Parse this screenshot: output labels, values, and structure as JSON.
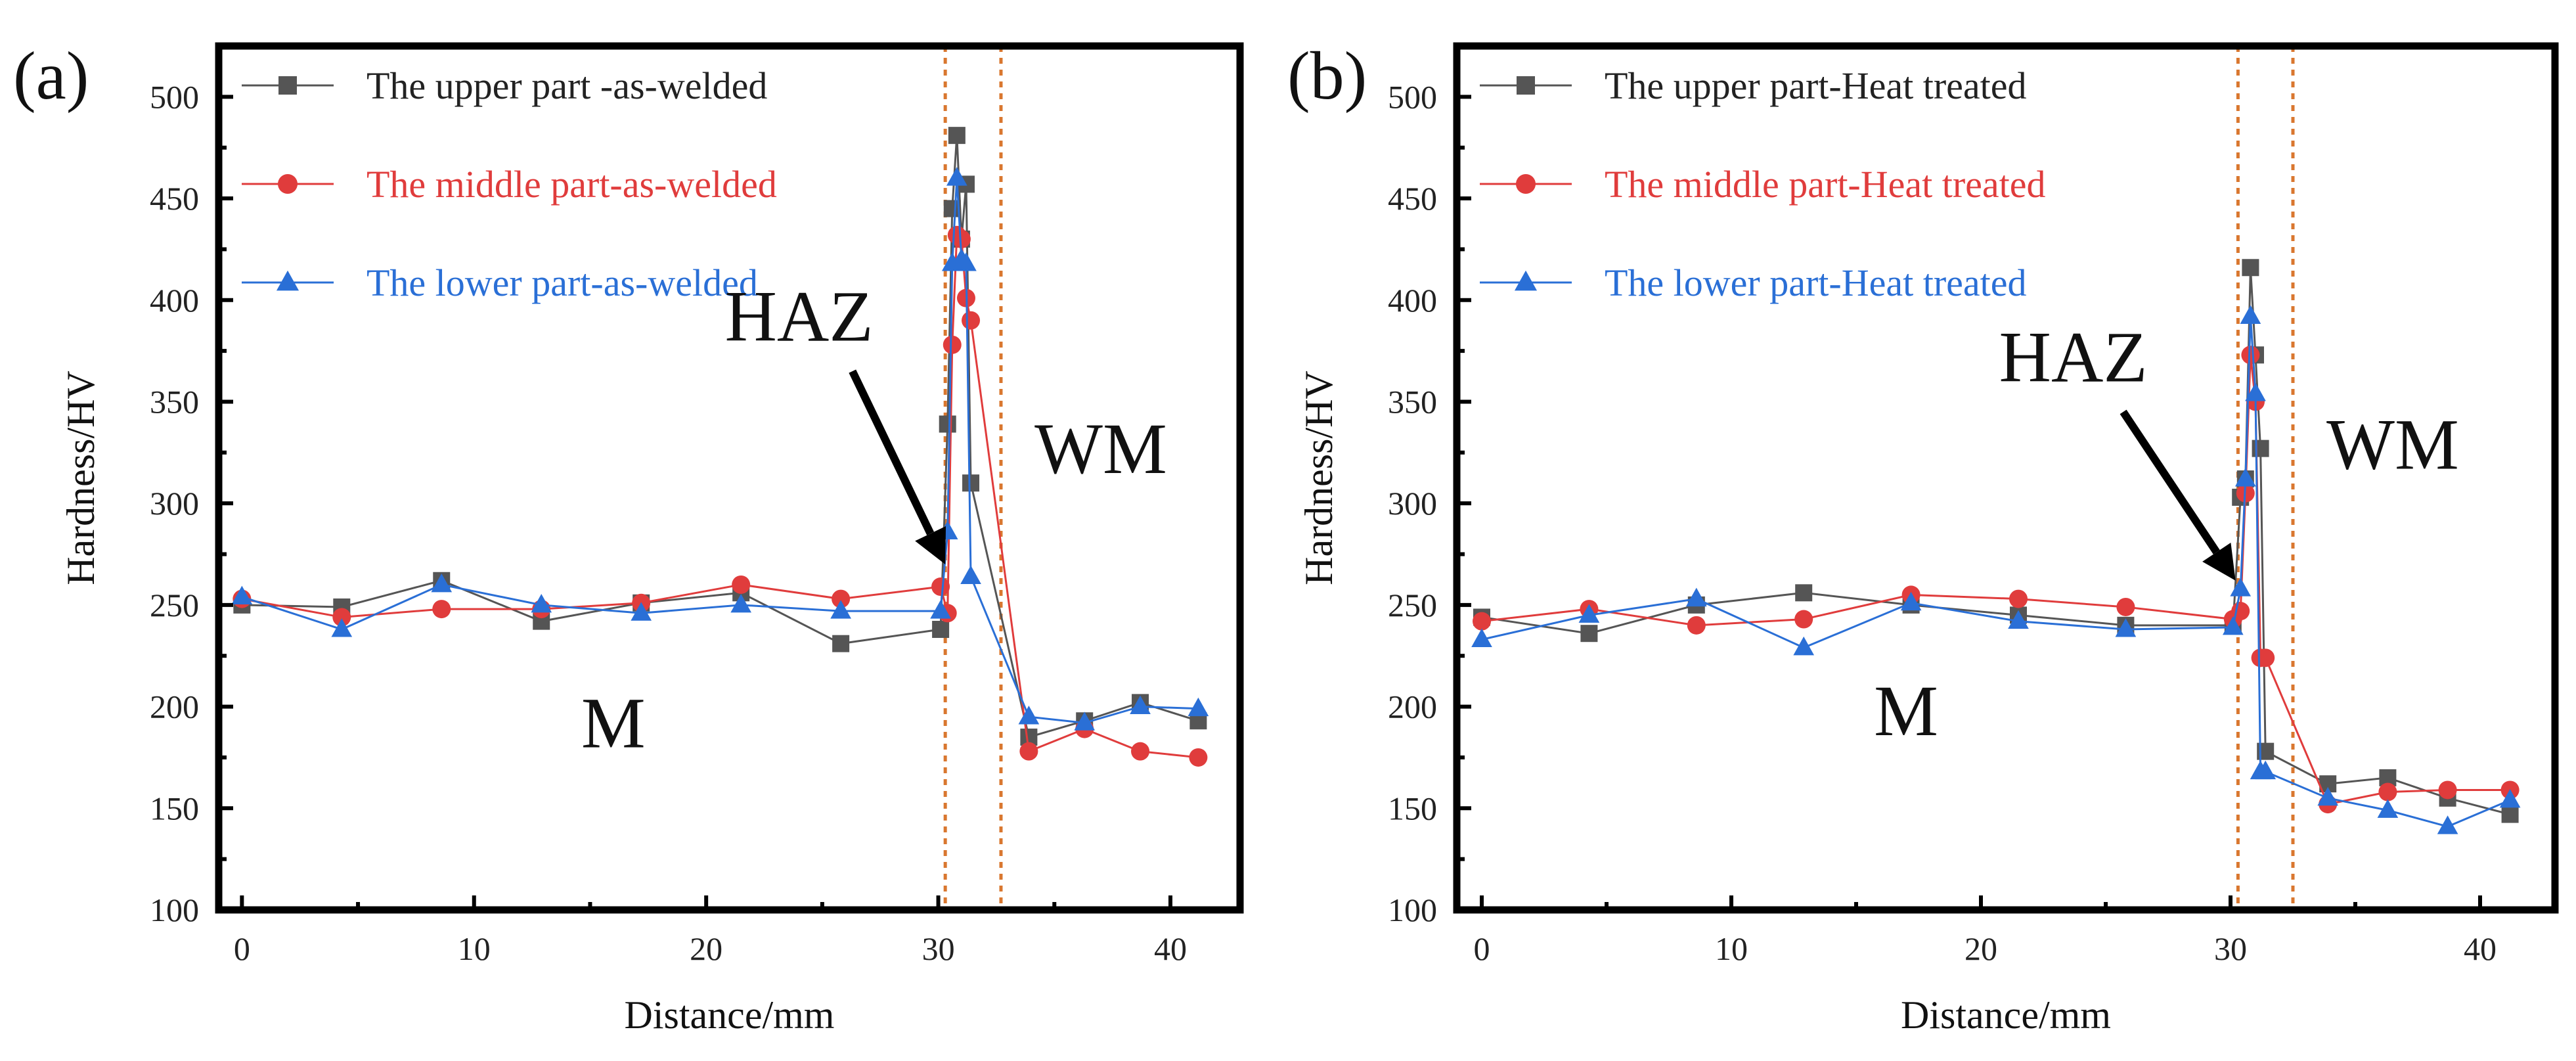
{
  "chart_data": [
    {
      "type": "line",
      "panel_label": "(a)",
      "xlabel": "Distance/mm",
      "ylabel": "Hardness/HV",
      "xlim": [
        -1,
        43
      ],
      "ylim": [
        100,
        525
      ],
      "xticks": [
        0,
        10,
        20,
        30,
        40
      ],
      "yticks": [
        100,
        150,
        200,
        250,
        300,
        350,
        400,
        450,
        500
      ],
      "zone_lines_x": [
        30.3,
        32.7
      ],
      "annotations": {
        "haz": "HAZ",
        "wm": "WM",
        "m": "M"
      },
      "arrow": {
        "from": [
          26.3,
          365
        ],
        "to": [
          30.3,
          270
        ]
      },
      "annotation_positions": {
        "haz": [
          24,
          380
        ],
        "wm": [
          37,
          315
        ],
        "m": [
          16,
          180
        ]
      },
      "legend_position": "top-left",
      "series": [
        {
          "name": "The upper part -as-welded",
          "color": "#555555",
          "marker": "square",
          "x": [
            0,
            4.3,
            8.6,
            12.9,
            17.2,
            21.5,
            25.8,
            30.1,
            30.4,
            30.6,
            30.8,
            31.0,
            31.2,
            31.4,
            33.9,
            36.3,
            38.7,
            41.2
          ],
          "y": [
            250,
            249,
            262,
            242,
            251,
            256,
            231,
            238,
            339,
            445,
            481,
            430,
            457,
            310,
            185,
            193,
            202,
            193
          ]
        },
        {
          "name": "The middle part-as-welded",
          "color": "#e03c3c",
          "marker": "circle",
          "x": [
            0,
            4.3,
            8.6,
            12.9,
            17.2,
            21.5,
            25.8,
            30.1,
            30.4,
            30.6,
            30.8,
            31.0,
            31.2,
            31.4,
            33.9,
            36.3,
            38.7,
            41.2
          ],
          "y": [
            253,
            244,
            248,
            248,
            251,
            260,
            253,
            259,
            246,
            378,
            432,
            430,
            401,
            390,
            178,
            189,
            178,
            175
          ]
        },
        {
          "name": "The lower part-as-welded",
          "color": "#2a6fd6",
          "marker": "triangle",
          "x": [
            0,
            4.3,
            8.6,
            12.9,
            17.2,
            21.5,
            25.8,
            30.1,
            30.4,
            30.6,
            30.8,
            31.0,
            31.2,
            31.4,
            33.9,
            36.3,
            38.7,
            41.2
          ],
          "y": [
            254,
            238,
            260,
            250,
            246,
            250,
            247,
            247,
            286,
            418,
            460,
            420,
            418,
            264,
            195,
            192,
            200,
            199
          ]
        }
      ]
    },
    {
      "type": "line",
      "panel_label": "(b)",
      "xlabel": "Distance/mm",
      "ylabel": "Hardness/HV",
      "xlim": [
        -1,
        43
      ],
      "ylim": [
        100,
        525
      ],
      "xticks": [
        0,
        10,
        20,
        30,
        40
      ],
      "yticks": [
        100,
        150,
        200,
        250,
        300,
        350,
        400,
        450,
        500
      ],
      "zone_lines_x": [
        30.3,
        32.5
      ],
      "annotations": {
        "haz": "HAZ",
        "wm": "WM",
        "m": "M"
      },
      "arrow": {
        "from": [
          25.7,
          345
        ],
        "to": [
          30.2,
          262
        ]
      },
      "annotation_positions": {
        "haz": [
          23.7,
          360
        ],
        "wm": [
          36.5,
          317
        ],
        "m": [
          17,
          186
        ]
      },
      "legend_position": "top-left",
      "series": [
        {
          "name": "The upper part-Heat treated",
          "color": "#555555",
          "marker": "square",
          "x": [
            0,
            4.3,
            8.6,
            12.9,
            17.2,
            21.5,
            25.8,
            30.1,
            30.4,
            30.6,
            30.8,
            31.0,
            31.2,
            31.4,
            33.9,
            36.3,
            38.7,
            41.2
          ],
          "y": [
            244,
            236,
            250,
            256,
            250,
            245,
            240,
            240,
            303,
            312,
            416,
            373,
            327,
            178,
            162,
            165,
            155,
            147
          ]
        },
        {
          "name": "The middle part-Heat treated",
          "color": "#e03c3c",
          "marker": "circle",
          "x": [
            0,
            4.3,
            8.6,
            12.9,
            17.2,
            21.5,
            25.8,
            30.1,
            30.4,
            30.6,
            30.8,
            31.0,
            31.2,
            31.4,
            33.9,
            36.3,
            38.7,
            41.2
          ],
          "y": [
            242,
            248,
            240,
            243,
            255,
            253,
            249,
            243,
            247,
            305,
            373,
            350,
            224,
            224,
            152,
            158,
            159,
            159
          ]
        },
        {
          "name": "The lower part-Heat treated",
          "color": "#2a6fd6",
          "marker": "triangle",
          "x": [
            0,
            4.3,
            8.6,
            12.9,
            17.2,
            21.5,
            25.8,
            30.1,
            30.4,
            30.6,
            30.8,
            31.0,
            31.2,
            31.4,
            33.9,
            36.3,
            38.7,
            41.2
          ],
          "y": [
            233,
            245,
            253,
            229,
            251,
            242,
            238,
            239,
            258,
            312,
            392,
            354,
            168,
            168,
            155,
            149,
            141,
            154
          ]
        }
      ]
    }
  ]
}
